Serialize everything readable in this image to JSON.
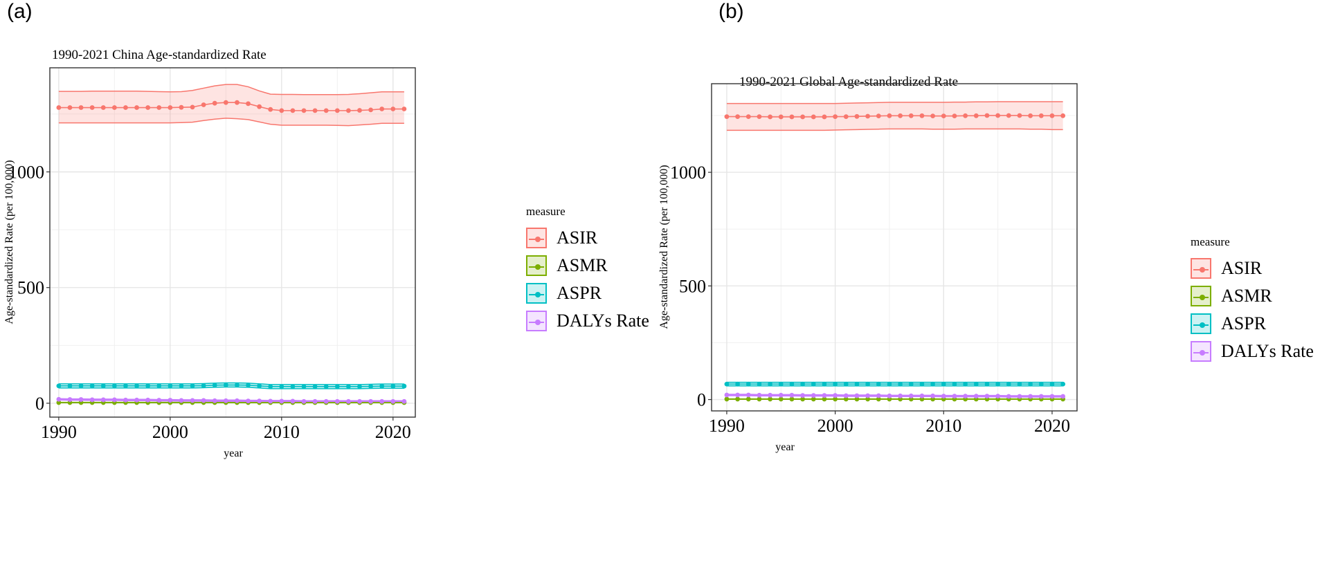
{
  "panels": {
    "a": {
      "label": "(a)"
    },
    "b": {
      "label": "(b)"
    }
  },
  "legend": {
    "title": "measure",
    "items": [
      {
        "name": "ASIR",
        "color": "#F8766D",
        "fill": "#F8766D"
      },
      {
        "name": "ASMR",
        "color": "#7CAE00",
        "fill": "#7CAE00"
      },
      {
        "name": "ASPR",
        "color": "#00BFC4",
        "fill": "#00BFC4"
      },
      {
        "name": "DALYs Rate",
        "color": "#C77CFF",
        "fill": "#C77CFF"
      }
    ]
  },
  "chart_data": [
    {
      "type": "line",
      "title": "1990-2021 China Age-standardized Rate",
      "xlabel": "year",
      "ylabel": "Age-standardized Rate (per 100,000)",
      "xlim": [
        1989.2,
        2022
      ],
      "ylim": [
        -60,
        1450
      ],
      "xticks": [
        1990,
        2000,
        2010,
        2020
      ],
      "yticks": [
        0,
        500,
        1000
      ],
      "ygrid_minor": [
        250,
        750,
        1250
      ],
      "xgrid_minor": [
        1995,
        2005,
        2015
      ],
      "x": [
        1990,
        1991,
        1992,
        1993,
        1994,
        1995,
        1996,
        1997,
        1998,
        1999,
        2000,
        2001,
        2002,
        2003,
        2004,
        2005,
        2006,
        2007,
        2008,
        2009,
        2010,
        2011,
        2012,
        2013,
        2014,
        2015,
        2016,
        2017,
        2018,
        2019,
        2020,
        2021
      ],
      "series": [
        {
          "name": "ASIR",
          "values": [
            1278,
            1278,
            1278,
            1278,
            1278,
            1278,
            1278,
            1278,
            1278,
            1278,
            1278,
            1279,
            1280,
            1290,
            1297,
            1300,
            1300,
            1295,
            1282,
            1270,
            1265,
            1265,
            1265,
            1265,
            1265,
            1265,
            1265,
            1266,
            1268,
            1272,
            1272,
            1272
          ],
          "lower": [
            1212,
            1212,
            1212,
            1212,
            1212,
            1212,
            1212,
            1212,
            1212,
            1212,
            1212,
            1213,
            1215,
            1222,
            1228,
            1232,
            1230,
            1226,
            1216,
            1206,
            1202,
            1202,
            1202,
            1202,
            1202,
            1201,
            1200,
            1203,
            1206,
            1210,
            1210,
            1210
          ],
          "upper": [
            1348,
            1348,
            1348,
            1349,
            1349,
            1349,
            1349,
            1349,
            1348,
            1347,
            1346,
            1347,
            1352,
            1362,
            1372,
            1378,
            1378,
            1368,
            1350,
            1336,
            1335,
            1335,
            1334,
            1334,
            1334,
            1334,
            1335,
            1338,
            1342,
            1346,
            1346,
            1346
          ]
        },
        {
          "name": "ASMR",
          "values": [
            3,
            3,
            3,
            3,
            3,
            3,
            3,
            3,
            3,
            3,
            3,
            3,
            3,
            3,
            3,
            3,
            3,
            3,
            3,
            3,
            3,
            3,
            3,
            3,
            3,
            3,
            3,
            3,
            3,
            3,
            3,
            3
          ],
          "lower": [
            2,
            2,
            2,
            2,
            2,
            2,
            2,
            2,
            2,
            2,
            2,
            2,
            2,
            2,
            2,
            2,
            2,
            2,
            2,
            2,
            2,
            2,
            2,
            2,
            2,
            2,
            2,
            2,
            2,
            2,
            2,
            2
          ],
          "upper": [
            4,
            4,
            4,
            4,
            4,
            4,
            4,
            4,
            4,
            4,
            4,
            4,
            4,
            4,
            4,
            4,
            4,
            4,
            4,
            4,
            4,
            4,
            4,
            4,
            4,
            4,
            4,
            4,
            4,
            4,
            4,
            4
          ]
        },
        {
          "name": "ASPR",
          "values": [
            75,
            75,
            75,
            75,
            75,
            75,
            75,
            75,
            75,
            75,
            75,
            75,
            75,
            76,
            78,
            79,
            79,
            78,
            75,
            72,
            72,
            72,
            72,
            72,
            72,
            72,
            72,
            72,
            73,
            74,
            74,
            74
          ],
          "lower": [
            66,
            66,
            66,
            66,
            66,
            66,
            66,
            66,
            66,
            66,
            66,
            66,
            66,
            67,
            69,
            70,
            70,
            69,
            66,
            63,
            63,
            63,
            63,
            63,
            63,
            63,
            63,
            63,
            64,
            65,
            65,
            65
          ],
          "upper": [
            84,
            84,
            84,
            84,
            84,
            84,
            84,
            84,
            84,
            84,
            84,
            84,
            84,
            85,
            87,
            88,
            88,
            87,
            84,
            81,
            81,
            81,
            81,
            81,
            81,
            81,
            81,
            81,
            82,
            83,
            83,
            83
          ]
        },
        {
          "name": "DALYs Rate",
          "values": [
            17,
            16,
            16,
            15,
            15,
            15,
            14,
            14,
            14,
            13,
            13,
            12,
            12,
            12,
            11,
            11,
            11,
            10,
            10,
            9,
            9,
            9,
            8,
            8,
            8,
            8,
            8,
            8,
            8,
            8,
            8,
            8
          ],
          "lower": [
            14,
            13,
            13,
            12,
            12,
            12,
            11,
            11,
            11,
            10,
            10,
            9,
            9,
            9,
            8,
            8,
            8,
            7,
            7,
            6,
            6,
            6,
            5,
            5,
            5,
            5,
            5,
            5,
            5,
            5,
            5,
            5
          ],
          "upper": [
            20,
            19,
            19,
            18,
            18,
            18,
            17,
            17,
            17,
            16,
            16,
            15,
            15,
            15,
            14,
            14,
            14,
            13,
            13,
            12,
            12,
            12,
            11,
            11,
            11,
            11,
            11,
            11,
            11,
            11,
            11,
            11
          ]
        }
      ]
    },
    {
      "type": "line",
      "title": "1990-2021 Global Age-standardized Rate",
      "xlabel": "year",
      "ylabel": "Age-standardized Rate (per 100,000)",
      "xlim": [
        1988.6,
        2022.3
      ],
      "ylim": [
        -50,
        1390
      ],
      "xticks": [
        1990,
        2000,
        2010,
        2020
      ],
      "yticks": [
        0,
        500,
        1000
      ],
      "ygrid_minor": [
        250,
        750,
        1250
      ],
      "xgrid_minor": [
        1995,
        2005,
        2015
      ],
      "x": [
        1990,
        1991,
        1992,
        1993,
        1994,
        1995,
        1996,
        1997,
        1998,
        1999,
        2000,
        2001,
        2002,
        2003,
        2004,
        2005,
        2006,
        2007,
        2008,
        2009,
        2010,
        2011,
        2012,
        2013,
        2014,
        2015,
        2016,
        2017,
        2018,
        2019,
        2020,
        2021
      ],
      "series": [
        {
          "name": "ASIR",
          "values": [
            1245,
            1245,
            1245,
            1245,
            1244,
            1244,
            1244,
            1244,
            1244,
            1244,
            1245,
            1245,
            1246,
            1247,
            1248,
            1249,
            1249,
            1249,
            1249,
            1248,
            1248,
            1248,
            1249,
            1249,
            1250,
            1250,
            1250,
            1250,
            1249,
            1249,
            1249,
            1249
          ],
          "lower": [
            1185,
            1185,
            1185,
            1185,
            1185,
            1185,
            1185,
            1185,
            1185,
            1185,
            1186,
            1187,
            1188,
            1189,
            1190,
            1191,
            1191,
            1191,
            1191,
            1190,
            1190,
            1190,
            1191,
            1191,
            1191,
            1191,
            1191,
            1191,
            1190,
            1190,
            1188,
            1188
          ],
          "upper": [
            1303,
            1303,
            1303,
            1303,
            1303,
            1303,
            1303,
            1303,
            1303,
            1303,
            1303,
            1304,
            1305,
            1306,
            1307,
            1308,
            1308,
            1308,
            1308,
            1308,
            1308,
            1309,
            1309,
            1310,
            1310,
            1311,
            1311,
            1311,
            1311,
            1311,
            1311,
            1311
          ]
        },
        {
          "name": "ASMR",
          "values": [
            2,
            2,
            2,
            2,
            2,
            2,
            2,
            2,
            2,
            2,
            2,
            2,
            2,
            2,
            2,
            2,
            2,
            2,
            2,
            2,
            2,
            2,
            2,
            2,
            2,
            2,
            2,
            2,
            2,
            2,
            2,
            2
          ],
          "lower": [
            1,
            1,
            1,
            1,
            1,
            1,
            1,
            1,
            1,
            1,
            1,
            1,
            1,
            1,
            1,
            1,
            1,
            1,
            1,
            1,
            1,
            1,
            1,
            1,
            1,
            1,
            1,
            1,
            1,
            1,
            1,
            1
          ],
          "upper": [
            3,
            3,
            3,
            3,
            3,
            3,
            3,
            3,
            3,
            3,
            3,
            3,
            3,
            3,
            3,
            3,
            3,
            3,
            3,
            3,
            3,
            3,
            3,
            3,
            3,
            3,
            3,
            3,
            3,
            3,
            3,
            3
          ]
        },
        {
          "name": "ASPR",
          "values": [
            68,
            68,
            68,
            68,
            68,
            68,
            68,
            68,
            68,
            68,
            68,
            68,
            68,
            68,
            68,
            68,
            68,
            68,
            68,
            68,
            68,
            68,
            68,
            68,
            68,
            68,
            68,
            68,
            68,
            68,
            68,
            68
          ],
          "lower": [
            60,
            60,
            60,
            60,
            60,
            60,
            60,
            60,
            60,
            60,
            60,
            60,
            60,
            60,
            60,
            60,
            60,
            60,
            60,
            60,
            60,
            60,
            60,
            60,
            60,
            60,
            60,
            60,
            60,
            60,
            60,
            60
          ],
          "upper": [
            76,
            76,
            76,
            76,
            76,
            76,
            76,
            76,
            76,
            76,
            76,
            76,
            76,
            76,
            76,
            76,
            76,
            76,
            76,
            76,
            76,
            76,
            76,
            76,
            76,
            76,
            76,
            76,
            76,
            76,
            76,
            76
          ]
        },
        {
          "name": "DALYs Rate",
          "values": [
            20,
            20,
            20,
            19,
            19,
            19,
            19,
            18,
            18,
            18,
            18,
            17,
            17,
            17,
            17,
            16,
            16,
            16,
            16,
            16,
            15,
            15,
            15,
            15,
            15,
            15,
            14,
            14,
            14,
            14,
            14,
            14
          ],
          "lower": [
            17,
            17,
            17,
            16,
            16,
            16,
            16,
            15,
            15,
            15,
            15,
            14,
            14,
            14,
            14,
            13,
            13,
            13,
            13,
            13,
            12,
            12,
            12,
            12,
            12,
            12,
            11,
            11,
            11,
            11,
            11,
            11
          ],
          "upper": [
            23,
            23,
            23,
            22,
            22,
            22,
            22,
            21,
            21,
            21,
            21,
            20,
            20,
            20,
            20,
            19,
            19,
            19,
            19,
            19,
            18,
            18,
            18,
            18,
            18,
            18,
            17,
            17,
            17,
            17,
            17,
            17
          ]
        }
      ]
    }
  ]
}
